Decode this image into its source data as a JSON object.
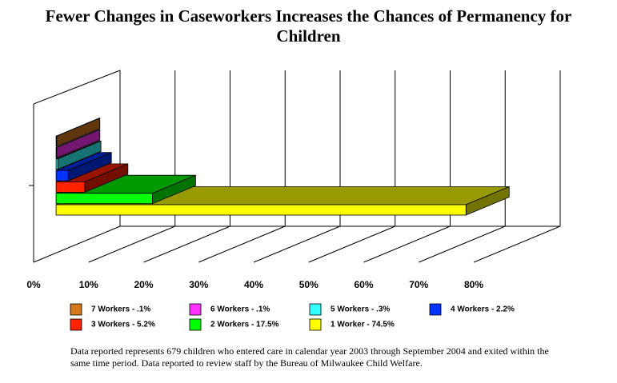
{
  "chart_data": {
    "type": "bar",
    "orientation": "horizontal",
    "title": "Fewer Changes in Caseworkers Increases the Chances of Permanency for Children",
    "series": [
      {
        "name": "1 Worker - 74.5%",
        "color": "#ffff00",
        "values": [
          74.5
        ]
      },
      {
        "name": "2 Workers - 17.5%",
        "color": "#00ff00",
        "values": [
          17.5
        ]
      },
      {
        "name": "3 Workers - 5.2%",
        "color": "#ff2200",
        "values": [
          5.2
        ]
      },
      {
        "name": "4 Workers - 2.2%",
        "color": "#0033ff",
        "values": [
          2.2
        ]
      },
      {
        "name": "5 Workers - .3%",
        "color": "#33ffff",
        "values": [
          0.3
        ]
      },
      {
        "name": "6 Workers - .1%",
        "color": "#ff33ff",
        "values": [
          0.1
        ]
      },
      {
        "name": "7 Workers - .1%",
        "color": "#d2791c",
        "values": [
          0.1
        ]
      }
    ],
    "xlim": [
      0,
      80
    ],
    "xticks": [
      {
        "value": 0,
        "label": "0%"
      },
      {
        "value": 10,
        "label": "10%"
      },
      {
        "value": 20,
        "label": "20%"
      },
      {
        "value": 30,
        "label": "30%"
      },
      {
        "value": 40,
        "label": "40%"
      },
      {
        "value": 50,
        "label": "50%"
      },
      {
        "value": 60,
        "label": "60%"
      },
      {
        "value": 70,
        "label": "70%"
      },
      {
        "value": 80,
        "label": "80%"
      }
    ],
    "grid": true,
    "note": "Data reported represents 679 children who entered care in calendar year 2003 through September 2004 and exited within the same time period. Data reported to review staff by the Bureau of Milwaukee Child Welfare."
  }
}
